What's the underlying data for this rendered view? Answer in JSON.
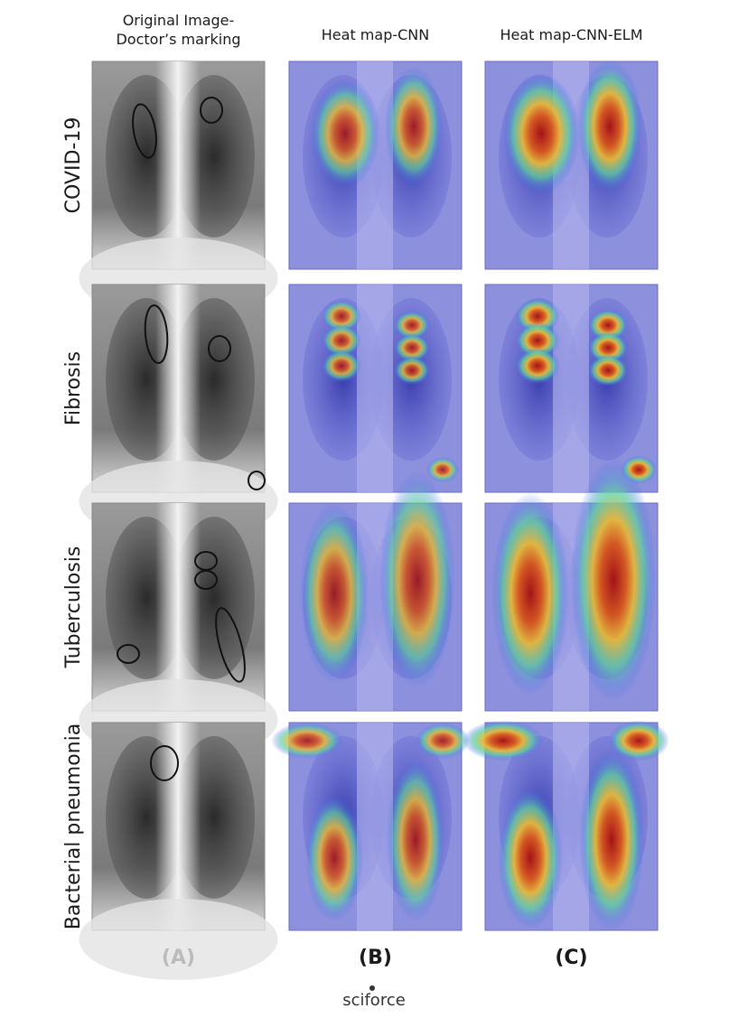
{
  "columns": [
    {
      "header": [
        "Original Image-",
        "Doctor’s marking"
      ],
      "label": "(A)"
    },
    {
      "header": [
        "Heat map-CNN"
      ],
      "label": "(B)"
    },
    {
      "header": [
        "Heat map-CNN-ELM"
      ],
      "label": "(C)"
    }
  ],
  "rows": [
    "COVID-19",
    "Fibrosis",
    "Tuberculosis",
    "Bacterial pneumonia"
  ],
  "footer": {
    "brand": "sciforce"
  }
}
